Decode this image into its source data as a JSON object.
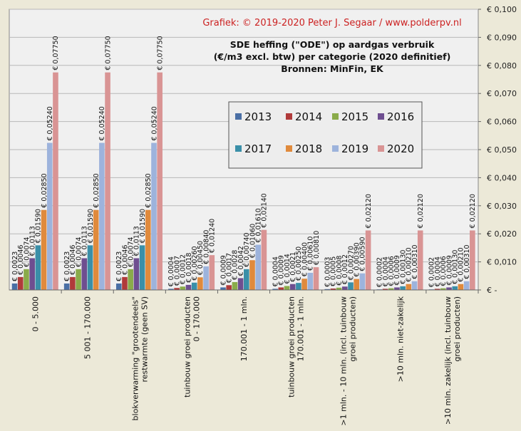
{
  "credit": "Grafiek:  © 2019-2020  Peter J. Segaar / www.polderpv.nl",
  "chart_data": {
    "type": "bar",
    "title": [
      "SDE heffing (\"ODE\")  op aardgas verbruik",
      "(€/m3 excl. btw) per categorie (2020 definitief)",
      "Bronnen: MinFin, EK"
    ],
    "xlabel": "",
    "ylabel": "",
    "ylim": [
      0,
      0.1
    ],
    "yticks": [
      0,
      0.01,
      0.02,
      0.03,
      0.04,
      0.05,
      0.06,
      0.07,
      0.08,
      0.09,
      0.1
    ],
    "ytick_labels": [
      "€ -",
      "€ 0,010",
      "€ 0,020",
      "€ 0,030",
      "€ 0,040",
      "€ 0,050",
      "€ 0,060",
      "€ 0,070",
      "€ 0,080",
      "€ 0,090",
      "€ 0,100"
    ],
    "grid": true,
    "legend_position": "inside-top-right",
    "categories": [
      [
        "0 - 5.000"
      ],
      [
        "5 001 - 170.000"
      ],
      [
        "blokverwarming \"grootendeels\"",
        "restwarmte (geen SV)"
      ],
      [
        "tuinbouw groei producten",
        "0 - 170.000"
      ],
      [
        "170.001 - 1 mln."
      ],
      [
        "tuinbouw groei producten",
        "170.001 - 1 mln."
      ],
      [
        ">1 mln. - 10 mln. (incl. tuinbouw",
        "groei producten)"
      ],
      [
        ">10 mln. niet-zakelijk"
      ],
      [
        ">10 mln. zakelijk (incl. tuinbouw",
        "groei producten)"
      ]
    ],
    "series": [
      {
        "name": "2013",
        "color": "#4a6fa5",
        "values": [
          0.0023,
          0.0023,
          0.0023,
          0.0004,
          0.0009,
          0.0004,
          0.0003,
          0.0002,
          0.0002
        ]
      },
      {
        "name": "2014",
        "color": "#b03a3a",
        "values": [
          0.0046,
          0.0046,
          0.0046,
          0.0007,
          0.0017,
          0.0009,
          0.0005,
          0.0004,
          0.0004
        ]
      },
      {
        "name": "2015",
        "color": "#8aab4a",
        "values": [
          0.0074,
          0.0074,
          0.0074,
          0.0012,
          0.0028,
          0.0014,
          0.0008,
          0.0006,
          0.0006
        ]
      },
      {
        "name": "2016",
        "color": "#6e4e90",
        "values": [
          0.0113,
          0.0113,
          0.0113,
          0.0018,
          0.0042,
          0.0021,
          0.0012,
          0.0009,
          0.0009
        ]
      },
      {
        "name": "2017",
        "color": "#3a8fa8",
        "values": [
          0.0159,
          0.0159,
          0.0159,
          0.0026,
          0.0074,
          0.0025,
          0.0027,
          0.0013,
          0.0013
        ]
      },
      {
        "name": "2018",
        "color": "#e08a3c",
        "values": [
          0.0285,
          0.0285,
          0.0285,
          0.0045,
          0.0106,
          0.004,
          0.0039,
          0.0021,
          0.0021
        ]
      },
      {
        "name": "2019",
        "color": "#9db3dc",
        "values": [
          0.0524,
          0.0524,
          0.0524,
          0.0084,
          0.0161,
          0.0061,
          0.0059,
          0.0031,
          0.0031
        ]
      },
      {
        "name": "2020",
        "color": "#d99494",
        "values": [
          0.0775,
          0.0775,
          0.0775,
          0.0124,
          0.0214,
          0.0081,
          0.0212,
          0.0212,
          0.0212
        ]
      }
    ],
    "data_labels": [
      [
        "€ 0,0023",
        "€ 0,0046",
        "€ 0,0074",
        "€ 0,0113",
        "€ 0,01590",
        "€ 0,02850",
        "€ 0,05240",
        "€ 0,07750"
      ],
      [
        "€ 0,0023",
        "€ 0,0046",
        "€ 0,0074",
        "€ 0,0113",
        "€ 0,01590",
        "€ 0,02850",
        "€ 0,05240",
        "€ 0,07750"
      ],
      [
        "€ 0,0023",
        "€ 0,0046",
        "€ 0,0074",
        "€ 0,0113",
        "€ 0,01590",
        "€ 0,02850",
        "€ 0,05240",
        "€ 0,07750"
      ],
      [
        "€ 0,0004",
        "€ 0,0007",
        "€ 0,0012",
        "€ 0,0018",
        "€ 0,00260",
        "€ 0,00450",
        "€ 0,00840",
        "€ 0,01240"
      ],
      [
        "€ 0,0009",
        "€ 0,0017",
        "€ 0,0028",
        "€ 0,0042",
        "€ 0,00740",
        "€ 0,01060",
        "€ 0,01610",
        "€ 0,02140"
      ],
      [
        "€ 0,0004",
        "€ 0,0009",
        "€ 0,0014",
        "€ 0,0021",
        "€ 0,00250",
        "€ 0,00400",
        "€ 0,00610",
        "€ 0,00810"
      ],
      [
        "€ 0,0003",
        "€ 0,0005",
        "€ 0,0008",
        "€ 0,0012",
        "€ 0,00270",
        "€ 0,00390",
        "€ 0,00590",
        "€ 0,02120"
      ],
      [
        "€ 0,0002",
        "€ 0,0004",
        "€ 0,0006",
        "€ 0,0009",
        "€ 0,00130",
        "€ 0,00210",
        "€ 0,00310",
        "€ 0,02120"
      ],
      [
        "€ 0,0002",
        "€ 0,0004",
        "€ 0,0006",
        "€ 0,0009",
        "€ 0,00130",
        "€ 0,00210",
        "€ 0,00310",
        "€ 0,02120"
      ]
    ]
  }
}
